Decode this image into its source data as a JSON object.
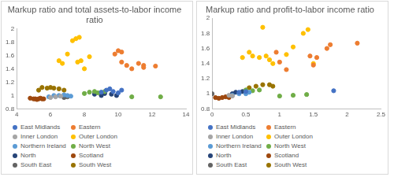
{
  "chart_data": [
    {
      "type": "scatter",
      "title": "Markup ratio and total assets-to-labor income ratio",
      "xlim": [
        4,
        14
      ],
      "xticks": [
        4,
        6,
        8,
        10,
        12,
        14
      ],
      "ylim": [
        0.8,
        2
      ],
      "yticks": [
        0.8,
        1,
        1.2,
        1.4,
        1.6,
        1.8,
        2
      ],
      "grid": false,
      "legend": "bottom",
      "marker": "circle",
      "series": [
        {
          "name": "East Midlands",
          "color": "#4472c4",
          "x": [
            9.0,
            9.3,
            9.5,
            9.7,
            10.0,
            10.2
          ],
          "values": [
            1.05,
            1.08,
            1.1,
            1.06,
            1.04,
            1.08
          ]
        },
        {
          "name": "Eastern",
          "color": "#ed7d31",
          "x": [
            9.8,
            10.0,
            10.2,
            10.2,
            10.5,
            10.8,
            11.2,
            11.5,
            11.5,
            12.2
          ],
          "values": [
            1.62,
            1.67,
            1.65,
            1.5,
            1.45,
            1.4,
            1.48,
            1.45,
            1.42,
            1.44
          ]
        },
        {
          "name": "Inner London",
          "color": "#a5a5a5",
          "x": [
            6.0,
            6.3,
            6.6
          ],
          "values": [
            0.97,
            0.98,
            0.99
          ]
        },
        {
          "name": "Outer London",
          "color": "#ffc000",
          "x": [
            6.5,
            6.7,
            7.0,
            7.3,
            7.5,
            7.7,
            7.6,
            7.8,
            8.0,
            8.3
          ],
          "values": [
            1.52,
            1.48,
            1.62,
            1.82,
            1.85,
            1.87,
            1.5,
            1.52,
            1.4,
            1.58
          ]
        },
        {
          "name": "Northern Ireland",
          "color": "#5b9bd5",
          "x": [
            5.9,
            6.2,
            6.5,
            6.8,
            7.0,
            7.2
          ],
          "values": [
            0.98,
            1.0,
            1.0,
            1.01,
            1.0,
            0.99
          ]
        },
        {
          "name": "North West",
          "color": "#70ad47",
          "x": [
            8.0,
            8.3,
            8.6,
            8.8,
            9.2,
            10.8,
            12.5
          ],
          "values": [
            1.03,
            1.05,
            1.06,
            1.04,
            1.06,
            0.98,
            0.98
          ]
        },
        {
          "name": "North",
          "color": "#264478",
          "x": [
            8.6,
            9.0,
            9.2,
            9.6,
            9.9
          ],
          "values": [
            1.02,
            1.0,
            1.03,
            1.02,
            1.0
          ]
        },
        {
          "name": "Scotland",
          "color": "#9e480e",
          "x": [
            4.8,
            5.0,
            5.1,
            5.2,
            5.3,
            5.4,
            5.5,
            5.6
          ],
          "values": [
            0.96,
            0.95,
            0.95,
            0.94,
            0.95,
            0.96,
            0.95,
            0.95
          ]
        },
        {
          "name": "South East",
          "color": "#636363",
          "x": [
            6.8,
            7.0
          ],
          "values": [
            0.97,
            0.98
          ]
        },
        {
          "name": "South West",
          "color": "#997300",
          "x": [
            5.3,
            5.5,
            5.8,
            6.0,
            6.2,
            6.5,
            6.8
          ],
          "values": [
            1.08,
            1.12,
            1.11,
            1.12,
            1.11,
            1.1,
            1.08
          ]
        }
      ]
    },
    {
      "type": "scatter",
      "title": "Markup ratio and profit-to-labor income ratio",
      "xlim": [
        0,
        2.5
      ],
      "xticks": [
        0,
        0.5,
        1,
        1.5,
        2,
        2.5
      ],
      "ylim": [
        0.8,
        2
      ],
      "yticks": [
        0.8,
        1,
        1.2,
        1.4,
        1.6,
        1.8,
        2
      ],
      "grid": false,
      "legend": "bottom",
      "marker": "circle",
      "series": [
        {
          "name": "East Midlands",
          "color": "#4472c4",
          "x": [
            0.4,
            0.5,
            1.8
          ],
          "values": [
            1.02,
            1.03,
            1.04
          ]
        },
        {
          "name": "Eastern",
          "color": "#ed7d31",
          "x": [
            0.95,
            1.0,
            1.1,
            1.45,
            1.5,
            1.55,
            1.7,
            1.75,
            2.15
          ],
          "values": [
            1.55,
            1.42,
            1.32,
            1.5,
            1.38,
            1.48,
            1.6,
            1.65,
            1.67
          ]
        },
        {
          "name": "Inner London",
          "color": "#a5a5a5",
          "x": [
            0.25,
            0.3
          ],
          "values": [
            0.98,
            0.97
          ]
        },
        {
          "name": "Outer London",
          "color": "#ffc000",
          "x": [
            0.45,
            0.55,
            0.6,
            0.7,
            0.75,
            0.8,
            0.85,
            0.9,
            1.1,
            1.2,
            1.35,
            1.42,
            1.5
          ],
          "values": [
            1.48,
            1.55,
            1.5,
            1.48,
            1.88,
            1.5,
            1.45,
            1.4,
            1.52,
            1.62,
            1.8,
            1.85,
            1.4
          ]
        },
        {
          "name": "Northern Ireland",
          "color": "#5b9bd5",
          "x": [
            0.3,
            0.4,
            0.5,
            0.55
          ],
          "values": [
            0.98,
            1.0,
            1.0,
            1.02
          ]
        },
        {
          "name": "North West",
          "color": "#70ad47",
          "x": [
            0.5,
            0.6,
            0.7,
            1.0,
            1.2,
            1.4
          ],
          "values": [
            1.05,
            1.04,
            1.05,
            0.97,
            0.98,
            0.99
          ]
        },
        {
          "name": "North",
          "color": "#264478",
          "x": [
            0.3,
            0.35,
            0.45
          ],
          "values": [
            1.0,
            1.02,
            1.03
          ]
        },
        {
          "name": "Scotland",
          "color": "#9e480e",
          "x": [
            0.05,
            0.1,
            0.15,
            0.2,
            0.25
          ],
          "values": [
            0.95,
            0.94,
            0.95,
            0.96,
            0.95
          ]
        },
        {
          "name": "South East",
          "color": "#636363",
          "x": [
            0.0
          ],
          "values": [
            1.0
          ]
        },
        {
          "name": "South West",
          "color": "#997300",
          "x": [
            0.55,
            0.65,
            0.75,
            0.85,
            0.9
          ],
          "values": [
            1.08,
            1.1,
            1.12,
            1.12,
            1.1
          ]
        }
      ]
    }
  ]
}
